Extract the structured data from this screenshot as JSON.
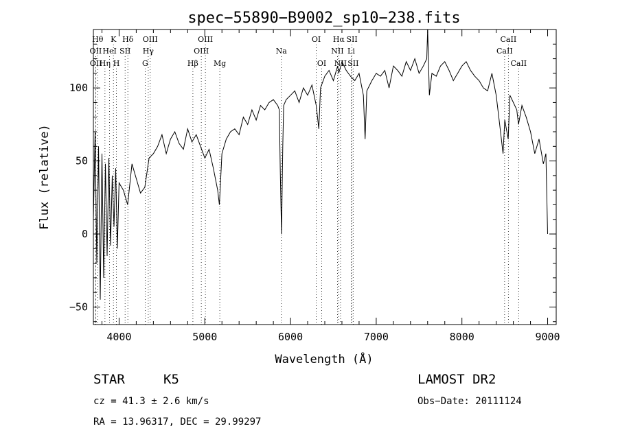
{
  "chart_data": {
    "type": "line",
    "title": "spec−55890−B9002_sp10−238.fits",
    "xlabel": "Wavelength (Å)",
    "ylabel": "Flux (relative)",
    "xlim": [
      3700,
      9100
    ],
    "ylim": [
      -62,
      140
    ],
    "x_ticks": [
      4000,
      5000,
      6000,
      7000,
      8000,
      9000
    ],
    "y_ticks": [
      -50,
      0,
      50,
      100
    ],
    "grid": false,
    "series": [
      {
        "x": [
          3700,
          3720,
          3740,
          3760,
          3780,
          3800,
          3820,
          3840,
          3860,
          3880,
          3900,
          3920,
          3940,
          3960,
          3980,
          4000,
          4050,
          4100,
          4150,
          4200,
          4250,
          4300,
          4350,
          4400,
          4450,
          4500,
          4550,
          4600,
          4650,
          4700,
          4750,
          4800,
          4850,
          4900,
          4950,
          5000,
          5050,
          5100,
          5150,
          5170,
          5200,
          5250,
          5300,
          5350,
          5400,
          5450,
          5500,
          5550,
          5600,
          5650,
          5700,
          5750,
          5800,
          5850,
          5870,
          5880,
          5895,
          5910,
          5920,
          5950,
          6000,
          6050,
          6100,
          6150,
          6200,
          6250,
          6300,
          6330,
          6350,
          6400,
          6450,
          6500,
          6550,
          6563,
          6600,
          6650,
          6700,
          6750,
          6800,
          6850,
          6870,
          6890,
          6950,
          7000,
          7050,
          7100,
          7150,
          7200,
          7250,
          7300,
          7350,
          7400,
          7450,
          7500,
          7550,
          7590,
          7600,
          7620,
          7650,
          7700,
          7750,
          7800,
          7850,
          7900,
          7950,
          8000,
          8050,
          8100,
          8150,
          8200,
          8250,
          8300,
          8350,
          8400,
          8430,
          8450,
          8480,
          8500,
          8540,
          8560,
          8600,
          8640,
          8660,
          8700,
          8750,
          8800,
          8850,
          8900,
          8950,
          8980,
          9000
        ],
        "y": [
          10,
          70,
          -20,
          60,
          -45,
          55,
          -30,
          48,
          -15,
          52,
          -8,
          40,
          5,
          45,
          -10,
          35,
          30,
          20,
          48,
          38,
          28,
          32,
          52,
          55,
          60,
          68,
          55,
          65,
          70,
          62,
          58,
          72,
          63,
          68,
          60,
          52,
          58,
          45,
          30,
          20,
          55,
          65,
          70,
          72,
          68,
          80,
          75,
          85,
          78,
          88,
          85,
          90,
          92,
          88,
          85,
          45,
          0,
          60,
          88,
          92,
          95,
          98,
          90,
          100,
          95,
          102,
          88,
          72,
          100,
          108,
          112,
          105,
          115,
          110,
          118,
          112,
          108,
          105,
          110,
          95,
          65,
          98,
          105,
          110,
          108,
          112,
          100,
          115,
          112,
          108,
          118,
          112,
          120,
          110,
          115,
          120,
          140,
          95,
          110,
          108,
          115,
          118,
          112,
          105,
          110,
          115,
          118,
          112,
          108,
          105,
          100,
          98,
          110,
          95,
          80,
          70,
          55,
          78,
          65,
          95,
          90,
          85,
          75,
          88,
          80,
          70,
          55,
          65,
          48,
          55,
          0
        ]
      }
    ],
    "line_ids": [
      {
        "label": "Hθ",
        "row": 0,
        "x": 3750
      },
      {
        "label": "K",
        "row": 0,
        "x": 3934
      },
      {
        "label": "Hδ",
        "row": 0,
        "x": 4102
      },
      {
        "label": "OIII",
        "row": 0,
        "x": 4363
      },
      {
        "label": "OIII",
        "row": 0,
        "x": 5007
      },
      {
        "label": "OI",
        "row": 0,
        "x": 6300
      },
      {
        "label": "Hα",
        "row": 0,
        "x": 6563
      },
      {
        "label": "SII",
        "row": 0,
        "x": 6717
      },
      {
        "label": "CaII",
        "row": 0,
        "x": 8542
      },
      {
        "label": "OII",
        "row": 1,
        "x": 3727
      },
      {
        "label": "HeI",
        "row": 1,
        "x": 3889
      },
      {
        "label": "SII",
        "row": 1,
        "x": 4070
      },
      {
        "label": "Hγ",
        "row": 1,
        "x": 4340
      },
      {
        "label": "OIII",
        "row": 1,
        "x": 4959
      },
      {
        "label": "Na",
        "row": 1,
        "x": 5893
      },
      {
        "label": "NII",
        "row": 1,
        "x": 6548
      },
      {
        "label": "Li",
        "row": 1,
        "x": 6708
      },
      {
        "label": "CaII",
        "row": 1,
        "x": 8498
      },
      {
        "label": "OII",
        "row": 2,
        "x": 3729
      },
      {
        "label": "Hη",
        "row": 2,
        "x": 3835
      },
      {
        "label": "H",
        "row": 2,
        "x": 3969
      },
      {
        "label": "G",
        "row": 2,
        "x": 4304
      },
      {
        "label": "Hβ",
        "row": 2,
        "x": 4861
      },
      {
        "label": "Mg",
        "row": 2,
        "x": 5175
      },
      {
        "label": "OI",
        "row": 2,
        "x": 6364
      },
      {
        "label": "NII",
        "row": 2,
        "x": 6584
      },
      {
        "label": "SII",
        "row": 2,
        "x": 6731
      },
      {
        "label": "CaII",
        "row": 2,
        "x": 8662
      }
    ]
  },
  "info": {
    "object_class": "STAR",
    "subclass": "K5",
    "survey": "LAMOST DR2",
    "redshift": "cz = 41.3 ± 2.6 km/s",
    "obs_date": "Obs−Date: 20111124",
    "coords": "RA =  13.96317, DEC =  29.99297"
  }
}
